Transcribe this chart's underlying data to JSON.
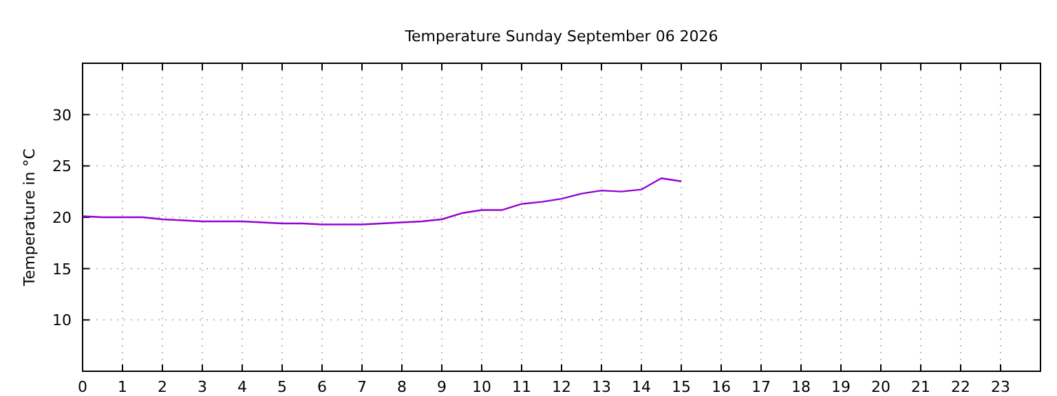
{
  "chart_data": {
    "type": "line",
    "title": "Temperature Sunday September 06 2026",
    "ylabel": "Temperature in °C",
    "x": [
      0,
      0.5,
      1,
      1.5,
      2,
      2.5,
      3,
      3.5,
      4,
      4.5,
      5,
      5.5,
      6,
      6.5,
      7,
      7.5,
      8,
      8.5,
      9,
      9.5,
      10,
      10.5,
      11,
      11.5,
      12,
      12.5,
      13,
      13.5,
      14,
      14.5,
      15
    ],
    "series": [
      {
        "color": "#9400d3",
        "values": [
          20.1,
          20.0,
          20.0,
          20.0,
          19.8,
          19.7,
          19.6,
          19.6,
          19.6,
          19.5,
          19.4,
          19.4,
          19.3,
          19.3,
          19.3,
          19.4,
          19.5,
          19.6,
          19.8,
          20.4,
          20.7,
          20.7,
          21.3,
          21.5,
          21.8,
          22.3,
          22.6,
          22.5,
          22.7,
          23.8,
          23.5
        ]
      }
    ],
    "xlim": [
      0,
      24
    ],
    "xticks": [
      0,
      1,
      2,
      3,
      4,
      5,
      6,
      7,
      8,
      9,
      10,
      11,
      12,
      13,
      14,
      15,
      16,
      17,
      18,
      19,
      20,
      21,
      22,
      23
    ],
    "ylim": [
      5,
      35
    ],
    "yticks": [
      10,
      15,
      20,
      25,
      30
    ],
    "grid": true,
    "line_style": "solid"
  }
}
